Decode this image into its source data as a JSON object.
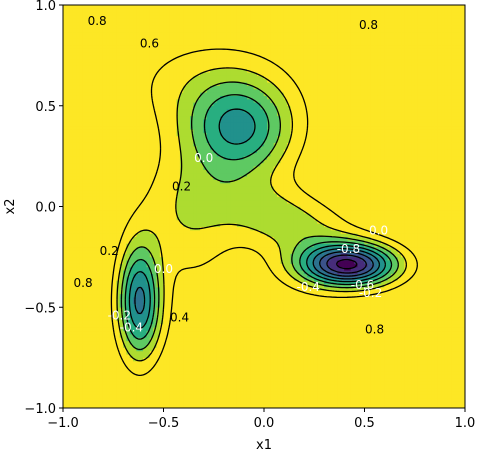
{
  "chart_data": {
    "type": "contour",
    "xlabel": "x1",
    "ylabel": "x2",
    "xlim": [
      -1.0,
      1.0
    ],
    "ylim": [
      -1.0,
      1.0
    ],
    "x_ticks": [
      "−1.0",
      "−0.5",
      "0.0",
      "0.5",
      "1.0"
    ],
    "y_ticks": [
      "−1.0",
      "−0.5",
      "0.0",
      "0.5",
      "1.0"
    ],
    "colormap": "viridis",
    "levels": [
      -0.8,
      -0.6,
      -0.4,
      -0.2,
      0.0,
      0.2,
      0.4,
      0.6,
      0.8
    ],
    "level_colors": [
      "#440154",
      "#472d7b",
      "#3b528b",
      "#2c728e",
      "#21918c",
      "#28ae80",
      "#5ec962",
      "#addc30",
      "#fde725"
    ],
    "function_basins": [
      {
        "x": -0.12,
        "y": 0.38,
        "min_value": -0.1
      },
      {
        "x": -0.62,
        "y": -0.47,
        "min_value": -0.45
      },
      {
        "x": 0.42,
        "y": -0.29,
        "min_value": -0.95
      }
    ],
    "contour_labels": [
      {
        "text": "0.8",
        "x": -0.83,
        "y": 0.92,
        "color": "#000000"
      },
      {
        "text": "0.6",
        "x": -0.57,
        "y": 0.81,
        "color": "#000000"
      },
      {
        "text": "0.8",
        "x": 0.52,
        "y": 0.9,
        "color": "#000000"
      },
      {
        "text": "0.0",
        "x": -0.3,
        "y": 0.24,
        "color": "#ffffff"
      },
      {
        "text": "0.2",
        "x": -0.41,
        "y": 0.1,
        "color": "#000000"
      },
      {
        "text": "0.0",
        "x": 0.57,
        "y": -0.12,
        "color": "#ffffff"
      },
      {
        "text": "-0.8",
        "x": 0.42,
        "y": -0.21,
        "color": "#ffffff"
      },
      {
        "text": "-0.4",
        "x": 0.22,
        "y": -0.4,
        "color": "#ffffff"
      },
      {
        "text": "-0.6",
        "x": 0.49,
        "y": -0.39,
        "color": "#ffffff"
      },
      {
        "text": "-0.2",
        "x": 0.53,
        "y": -0.43,
        "color": "#ffffff"
      },
      {
        "text": "0.2",
        "x": -0.77,
        "y": -0.22,
        "color": "#000000"
      },
      {
        "text": "0.0",
        "x": -0.5,
        "y": -0.31,
        "color": "#ffffff"
      },
      {
        "text": "0.8",
        "x": -0.9,
        "y": -0.38,
        "color": "#000000"
      },
      {
        "text": "-0.2",
        "x": -0.72,
        "y": -0.54,
        "color": "#ffffff"
      },
      {
        "text": "-0.4",
        "x": -0.66,
        "y": -0.6,
        "color": "#ffffff"
      },
      {
        "text": "0.4",
        "x": -0.42,
        "y": -0.55,
        "color": "#000000"
      },
      {
        "text": "0.8",
        "x": 0.55,
        "y": -0.61,
        "color": "#000000"
      }
    ]
  }
}
